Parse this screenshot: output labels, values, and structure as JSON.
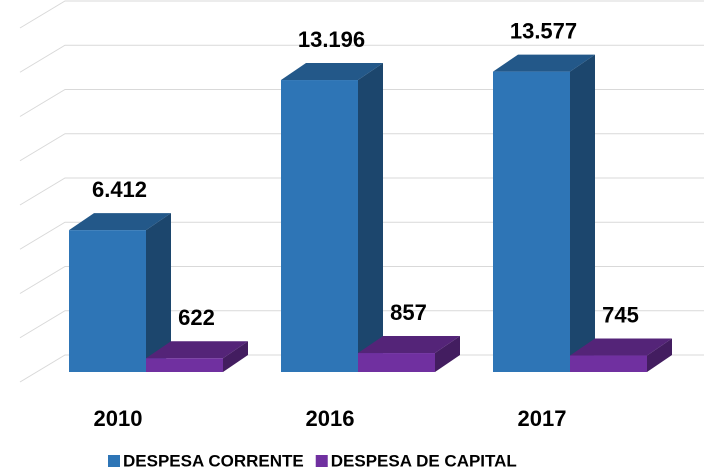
{
  "chart_data": {
    "type": "bar3d",
    "categories": [
      "2010",
      "2016",
      "2017"
    ],
    "series": [
      {
        "name": "DESPESA CORRENTE",
        "color": "#2e75b6",
        "values": [
          6412,
          13196,
          13577
        ],
        "value_labels": [
          "6.412",
          "13.196",
          "13.577"
        ]
      },
      {
        "name": "DESPESA DE CAPITAL",
        "color": "#7030a0",
        "values": [
          622,
          857,
          745
        ],
        "value_labels": [
          "622",
          "857",
          "745"
        ]
      }
    ],
    "ylim": [
      0,
      16000
    ],
    "yticks": [
      0,
      2000,
      4000,
      6000,
      8000,
      10000,
      12000,
      14000,
      16000
    ],
    "grid": true,
    "legend": "bottom"
  }
}
